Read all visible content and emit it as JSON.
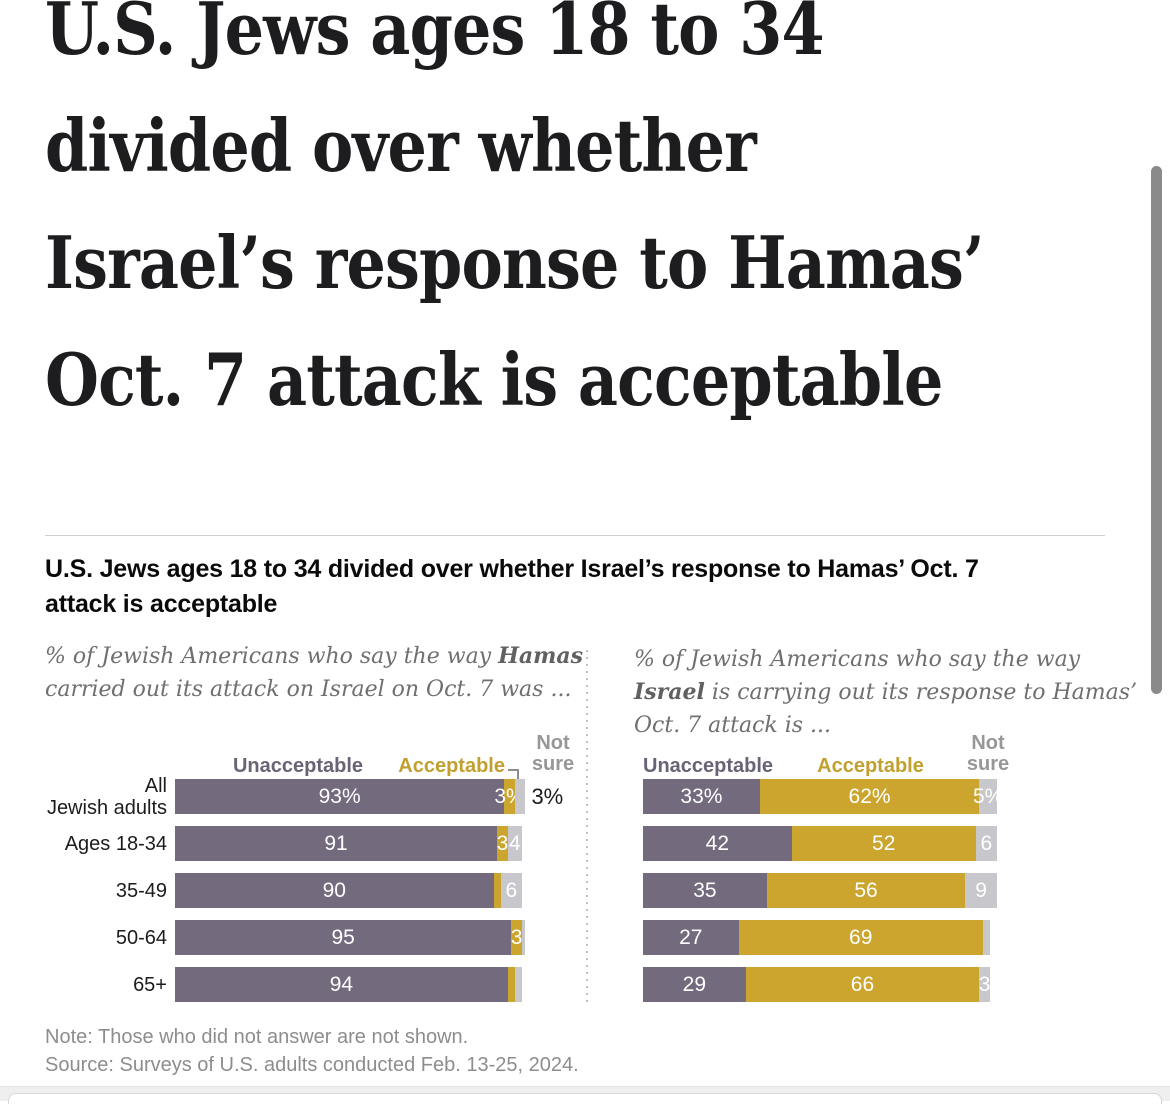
{
  "page": {
    "headline_lines": [
      "U.S. Jews ages 18 to 34",
      "divided over whether",
      "Israel’s response to Hamas’",
      "Oct. 7 attack is acceptable"
    ],
    "subtitle_lines": [
      "U.S. Jews ages 18 to 34 divided over whether Israel’s response to Hamas’ Oct. 7",
      "attack is acceptable"
    ],
    "note": "Note: Those who did not answer are not shown.",
    "source": "Source: Surveys of U.S. adults conducted Feb. 13-25, 2024."
  },
  "colors": {
    "unacceptable": "#736B7D",
    "acceptable": "#CBA52E",
    "not_sure": "#C8C7CB",
    "legend_unacceptable_text": "#6A6375",
    "legend_acceptable_text": "#C2A02F",
    "legend_not_sure_text": "#979797",
    "bar_label_text": "#FFFFFF"
  },
  "chart_data": [
    {
      "type": "bar",
      "stacked": true,
      "orientation": "horizontal",
      "xlim": [
        0,
        100
      ],
      "grid": false,
      "legend_position": "top",
      "title": "% of Jewish Americans who say the way Hamas carried out its attack on Israel on Oct. 7 was ...",
      "question_lines": [
        [
          {
            "t": "% of Jewish Americans who say the way "
          },
          {
            "t": "Hamas",
            "b": true
          }
        ],
        [
          {
            "t": "carried out its attack on Israel on Oct. 7 was ..."
          }
        ]
      ],
      "legend": [
        "Unacceptable",
        "Acceptable",
        "Not sure"
      ],
      "legend_not_sure_lines": [
        "Not",
        "sure"
      ],
      "categories": [
        [
          "All",
          "Jewish adults"
        ],
        "Ages 18-34",
        "35-49",
        "50-64",
        "65+"
      ],
      "series": [
        {
          "name": "Unacceptable",
          "values": [
            93,
            91,
            90,
            95,
            94
          ]
        },
        {
          "name": "Acceptable",
          "values": [
            3,
            3,
            2,
            3,
            2
          ]
        },
        {
          "name": "Not sure",
          "values": [
            3,
            4,
            6,
            1,
            2
          ]
        }
      ],
      "bar_labels": [
        [
          "93%",
          "3%",
          null
        ],
        [
          "91",
          "3",
          "4"
        ],
        [
          "90",
          null,
          "6"
        ],
        [
          "95",
          "3",
          null
        ],
        [
          "94",
          null,
          null
        ]
      ],
      "outside_labels": [
        "3%",
        null,
        null,
        null,
        null
      ],
      "show_categories": true
    },
    {
      "type": "bar",
      "stacked": true,
      "orientation": "horizontal",
      "xlim": [
        0,
        100
      ],
      "grid": false,
      "legend_position": "top",
      "title": "% of Jewish Americans who say the way Israel is carrying out its response to Hamas’ Oct. 7 attack is ...",
      "question_lines": [
        [
          {
            "t": "% of Jewish Americans who say the way"
          }
        ],
        [
          {
            "t": "Israel",
            "b": true
          },
          {
            "t": " is carrying out its response to Hamas’"
          }
        ],
        [
          {
            "t": "Oct. 7 attack is ..."
          }
        ]
      ],
      "legend": [
        "Unacceptable",
        "Acceptable",
        "Not sure"
      ],
      "legend_not_sure_lines": [
        "Not",
        "sure"
      ],
      "categories": [
        [
          "All",
          "Jewish adults"
        ],
        "Ages 18-34",
        "35-49",
        "50-64",
        "65+"
      ],
      "series": [
        {
          "name": "Unacceptable",
          "values": [
            33,
            42,
            35,
            27,
            29
          ]
        },
        {
          "name": "Acceptable",
          "values": [
            62,
            52,
            56,
            69,
            66
          ]
        },
        {
          "name": "Not sure",
          "values": [
            5,
            6,
            9,
            2,
            3
          ]
        }
      ],
      "bar_labels": [
        [
          "33%",
          "62%",
          "5%"
        ],
        [
          "42",
          "52",
          "6"
        ],
        [
          "35",
          "56",
          "9"
        ],
        [
          "27",
          "69",
          null
        ],
        [
          "29",
          "66",
          "3"
        ]
      ],
      "outside_labels": [
        null,
        null,
        null,
        null,
        null
      ],
      "show_categories": false
    }
  ]
}
